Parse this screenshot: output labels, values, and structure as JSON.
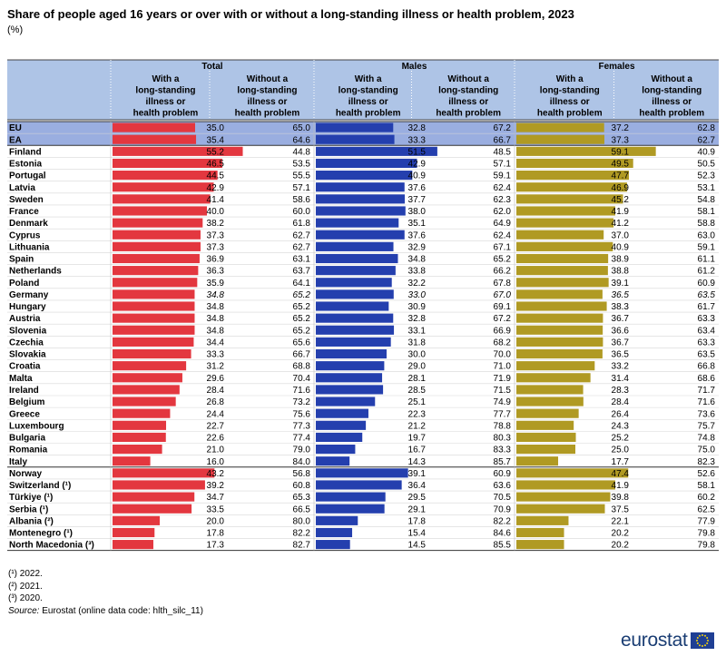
{
  "title": "Share of people aged 16 years or over with or without a long-standing illness or health problem, 2023",
  "unit": "(%)",
  "notes": [
    "(¹) 2022.",
    "(²) 2021.",
    "(³) 2020."
  ],
  "source": {
    "label": "Source:",
    "text": "Eurostat (online data code: hlth_silc_11)"
  },
  "logo": {
    "text": "eurostat"
  },
  "colors": {
    "total": "#e3373f",
    "males": "#243fae",
    "females": "#b09a23",
    "header_bg": "#aec4e6",
    "highlight_bg": "#9aaee0"
  },
  "chart_data": {
    "type": "table",
    "groups": [
      "Total",
      "Males",
      "Females"
    ],
    "subheaders": [
      "With a long-standing illness or health problem",
      "Without a long-standing illness or health problem"
    ],
    "rows": [
      {
        "country": "EU",
        "section": "aggregate",
        "total": [
          "35.0",
          "65.0"
        ],
        "males": [
          "32.8",
          "67.2"
        ],
        "females": [
          "37.2",
          "62.8"
        ]
      },
      {
        "country": "EA",
        "section": "aggregate",
        "total": [
          "35.4",
          "64.6"
        ],
        "males": [
          "33.3",
          "66.7"
        ],
        "females": [
          "37.3",
          "62.7"
        ]
      },
      {
        "country": "Finland",
        "section": "member",
        "total": [
          "55.2",
          "44.8"
        ],
        "males": [
          "51.5",
          "48.5"
        ],
        "females": [
          "59.1",
          "40.9"
        ]
      },
      {
        "country": "Estonia",
        "section": "member",
        "total": [
          "46.5",
          "53.5"
        ],
        "males": [
          "42.9",
          "57.1"
        ],
        "females": [
          "49.5",
          "50.5"
        ]
      },
      {
        "country": "Portugal",
        "section": "member",
        "total": [
          "44.5",
          "55.5"
        ],
        "males": [
          "40.9",
          "59.1"
        ],
        "females": [
          "47.7",
          "52.3"
        ]
      },
      {
        "country": "Latvia",
        "section": "member",
        "total": [
          "42.9",
          "57.1"
        ],
        "males": [
          "37.6",
          "62.4"
        ],
        "females": [
          "46.9",
          "53.1"
        ]
      },
      {
        "country": "Sweden",
        "section": "member",
        "total": [
          "41.4",
          "58.6"
        ],
        "males": [
          "37.7",
          "62.3"
        ],
        "females": [
          "45.2",
          "54.8"
        ]
      },
      {
        "country": "France",
        "section": "member",
        "total": [
          "40.0",
          "60.0"
        ],
        "males": [
          "38.0",
          "62.0"
        ],
        "females": [
          "41.9",
          "58.1"
        ]
      },
      {
        "country": "Denmark",
        "section": "member",
        "total": [
          "38.2",
          "61.8"
        ],
        "males": [
          "35.1",
          "64.9"
        ],
        "females": [
          "41.2",
          "58.8"
        ]
      },
      {
        "country": "Cyprus",
        "section": "member",
        "total": [
          "37.3",
          "62.7"
        ],
        "males": [
          "37.6",
          "62.4"
        ],
        "females": [
          "37.0",
          "63.0"
        ]
      },
      {
        "country": "Lithuania",
        "section": "member",
        "total": [
          "37.3",
          "62.7"
        ],
        "males": [
          "32.9",
          "67.1"
        ],
        "females": [
          "40.9",
          "59.1"
        ]
      },
      {
        "country": "Spain",
        "section": "member",
        "total": [
          "36.9",
          "63.1"
        ],
        "males": [
          "34.8",
          "65.2"
        ],
        "females": [
          "38.9",
          "61.1"
        ]
      },
      {
        "country": "Netherlands",
        "section": "member",
        "total": [
          "36.3",
          "63.7"
        ],
        "males": [
          "33.8",
          "66.2"
        ],
        "females": [
          "38.8",
          "61.2"
        ]
      },
      {
        "country": "Poland",
        "section": "member",
        "total": [
          "35.9",
          "64.1"
        ],
        "males": [
          "32.2",
          "67.8"
        ],
        "females": [
          "39.1",
          "60.9"
        ]
      },
      {
        "country": "Germany",
        "section": "member",
        "italic": true,
        "total": [
          "34.8",
          "65.2"
        ],
        "males": [
          "33.0",
          "67.0"
        ],
        "females": [
          "36.5",
          "63.5"
        ]
      },
      {
        "country": "Hungary",
        "section": "member",
        "total": [
          "34.8",
          "65.2"
        ],
        "males": [
          "30.9",
          "69.1"
        ],
        "females": [
          "38.3",
          "61.7"
        ]
      },
      {
        "country": "Austria",
        "section": "member",
        "total": [
          "34.8",
          "65.2"
        ],
        "males": [
          "32.8",
          "67.2"
        ],
        "females": [
          "36.7",
          "63.3"
        ]
      },
      {
        "country": "Slovenia",
        "section": "member",
        "total": [
          "34.8",
          "65.2"
        ],
        "males": [
          "33.1",
          "66.9"
        ],
        "females": [
          "36.6",
          "63.4"
        ]
      },
      {
        "country": "Czechia",
        "section": "member",
        "total": [
          "34.4",
          "65.6"
        ],
        "males": [
          "31.8",
          "68.2"
        ],
        "females": [
          "36.7",
          "63.3"
        ]
      },
      {
        "country": "Slovakia",
        "section": "member",
        "total": [
          "33.3",
          "66.7"
        ],
        "males": [
          "30.0",
          "70.0"
        ],
        "females": [
          "36.5",
          "63.5"
        ]
      },
      {
        "country": "Croatia",
        "section": "member",
        "total": [
          "31.2",
          "68.8"
        ],
        "males": [
          "29.0",
          "71.0"
        ],
        "females": [
          "33.2",
          "66.8"
        ]
      },
      {
        "country": "Malta",
        "section": "member",
        "total": [
          "29.6",
          "70.4"
        ],
        "males": [
          "28.1",
          "71.9"
        ],
        "females": [
          "31.4",
          "68.6"
        ]
      },
      {
        "country": "Ireland",
        "section": "member",
        "total": [
          "28.4",
          "71.6"
        ],
        "males": [
          "28.5",
          "71.5"
        ],
        "females": [
          "28.3",
          "71.7"
        ]
      },
      {
        "country": "Belgium",
        "section": "member",
        "total": [
          "26.8",
          "73.2"
        ],
        "males": [
          "25.1",
          "74.9"
        ],
        "females": [
          "28.4",
          "71.6"
        ]
      },
      {
        "country": "Greece",
        "section": "member",
        "total": [
          "24.4",
          "75.6"
        ],
        "males": [
          "22.3",
          "77.7"
        ],
        "females": [
          "26.4",
          "73.6"
        ]
      },
      {
        "country": "Luxembourg",
        "section": "member",
        "total": [
          "22.7",
          "77.3"
        ],
        "males": [
          "21.2",
          "78.8"
        ],
        "females": [
          "24.3",
          "75.7"
        ]
      },
      {
        "country": "Bulgaria",
        "section": "member",
        "total": [
          "22.6",
          "77.4"
        ],
        "males": [
          "19.7",
          "80.3"
        ],
        "females": [
          "25.2",
          "74.8"
        ]
      },
      {
        "country": "Romania",
        "section": "member",
        "total": [
          "21.0",
          "79.0"
        ],
        "males": [
          "16.7",
          "83.3"
        ],
        "females": [
          "25.0",
          "75.0"
        ]
      },
      {
        "country": "Italy",
        "section": "member",
        "total": [
          "16.0",
          "84.0"
        ],
        "males": [
          "14.3",
          "85.7"
        ],
        "females": [
          "17.7",
          "82.3"
        ]
      },
      {
        "country": "Norway",
        "section": "other",
        "total": [
          "43.2",
          "56.8"
        ],
        "males": [
          "39.1",
          "60.9"
        ],
        "females": [
          "47.4",
          "52.6"
        ]
      },
      {
        "country": "Switzerland (¹)",
        "section": "other",
        "total": [
          "39.2",
          "60.8"
        ],
        "males": [
          "36.4",
          "63.6"
        ],
        "females": [
          "41.9",
          "58.1"
        ]
      },
      {
        "country": "Türkiye (¹)",
        "section": "other",
        "total": [
          "34.7",
          "65.3"
        ],
        "males": [
          "29.5",
          "70.5"
        ],
        "females": [
          "39.8",
          "60.2"
        ]
      },
      {
        "country": "Serbia (¹)",
        "section": "other",
        "total": [
          "33.5",
          "66.5"
        ],
        "males": [
          "29.1",
          "70.9"
        ],
        "females": [
          "37.5",
          "62.5"
        ]
      },
      {
        "country": "Albania (²)",
        "section": "other",
        "total": [
          "20.0",
          "80.0"
        ],
        "males": [
          "17.8",
          "82.2"
        ],
        "females": [
          "22.1",
          "77.9"
        ]
      },
      {
        "country": "Montenegro (¹)",
        "section": "other",
        "total": [
          "17.8",
          "82.2"
        ],
        "males": [
          "15.4",
          "84.6"
        ],
        "females": [
          "20.2",
          "79.8"
        ]
      },
      {
        "country": "North Macedonia (³)",
        "section": "other",
        "total": [
          "17.3",
          "82.7"
        ],
        "males": [
          "14.5",
          "85.5"
        ],
        "females": [
          "20.2",
          "79.8"
        ]
      }
    ]
  }
}
